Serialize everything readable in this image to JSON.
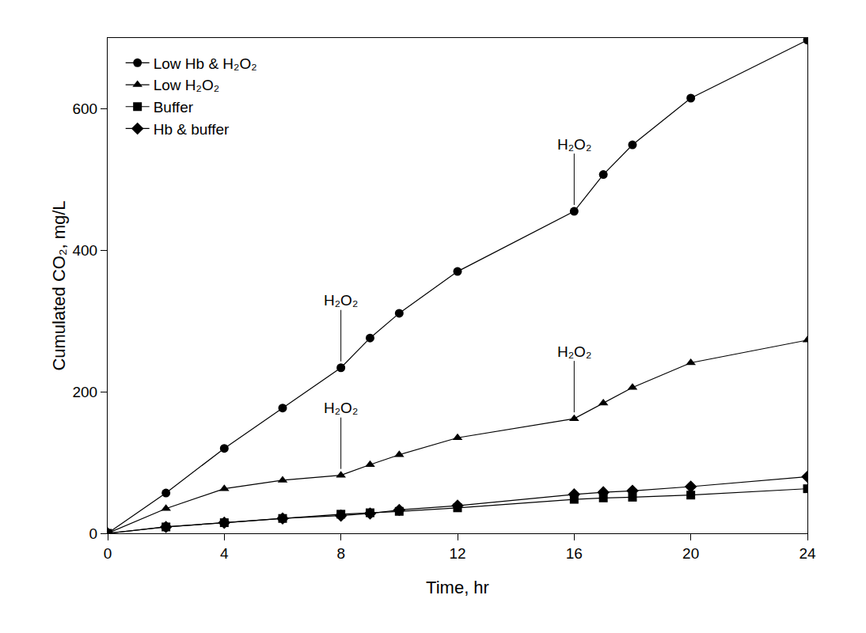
{
  "chart_data": {
    "type": "line",
    "x_label": "Time, hr",
    "y_label": "Cumulated CO₂, mg/L",
    "x": [
      0,
      2,
      4,
      6,
      8,
      9,
      10,
      12,
      16,
      17,
      18,
      20,
      24
    ],
    "series": [
      {
        "name": "Low Hb & H₂O₂",
        "color": "#000000",
        "marker": "circle",
        "values": [
          0,
          57,
          120,
          177,
          234,
          276,
          311,
          370,
          455,
          507,
          549,
          615,
          697
        ]
      },
      {
        "name": "Low H₂O₂",
        "color": "#000000",
        "marker": "triangle-up",
        "values": [
          0,
          35,
          63,
          75,
          82,
          97,
          111,
          135,
          162,
          184,
          206,
          241,
          273
        ]
      },
      {
        "name": "Buffer",
        "color": "#000000",
        "marker": "square",
        "values": [
          0,
          9,
          15,
          21,
          27,
          29,
          31,
          36,
          48,
          50,
          51,
          54,
          63
        ]
      },
      {
        "name": "Hb & buffer",
        "color": "#000000",
        "marker": "diamond",
        "values": [
          0,
          9,
          15,
          21,
          25,
          28,
          33,
          39,
          55,
          58,
          60,
          66,
          80
        ]
      }
    ],
    "annotations": [
      {
        "text": "H₂O₂",
        "x": 8,
        "y": 234
      },
      {
        "text": "H₂O₂",
        "x": 16,
        "y": 455
      },
      {
        "text": "H₂O₂",
        "x": 8,
        "y": 82
      },
      {
        "text": "H₂O₂",
        "x": 16,
        "y": 162
      }
    ],
    "xlim": [
      0,
      24
    ],
    "xticks": [
      0,
      4,
      8,
      12,
      16,
      20,
      24
    ],
    "ylim": [
      0,
      700
    ],
    "yticks": [
      0,
      200,
      400,
      600
    ],
    "grid": false,
    "legend": "upper left"
  }
}
